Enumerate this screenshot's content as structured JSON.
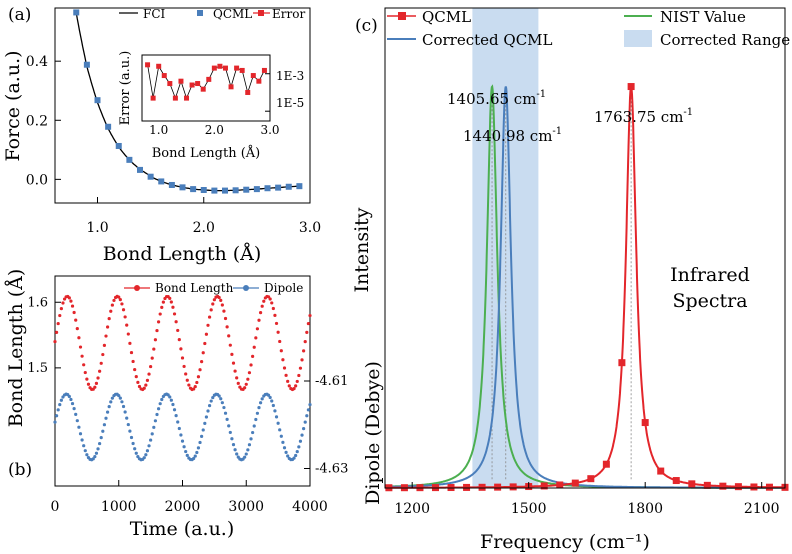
{
  "panels": {
    "a": {
      "label": "(a)",
      "xlabel": "Bond Length (Å)",
      "ylabel": "Force (a.u.)",
      "x_ticks": [
        "1.0",
        "2.0",
        "3.0"
      ],
      "y_ticks": [
        "0.0",
        "0.2",
        "0.4"
      ],
      "legend": [
        "FCI",
        "QCML",
        "Error"
      ],
      "inset": {
        "xlabel": "Bond Length (Å)",
        "ylabel": "Error (a.u.)",
        "x_ticks": [
          "1.0",
          "2.0",
          "3.0"
        ],
        "y_ticks": [
          "1E-3",
          "1E-5"
        ]
      }
    },
    "b": {
      "label": "(b)",
      "xlabel": "Time (a.u.)",
      "ylabel_left": "Bond Length (Å)",
      "ylabel_right": "Dipole (Debye)",
      "x_ticks": [
        "0",
        "1000",
        "2000",
        "3000",
        "4000"
      ],
      "y_ticks_left": [
        "1.6",
        "1.5"
      ],
      "y_ticks_right": [
        "-4.61",
        "-4.63"
      ],
      "legend": [
        "Bond Length",
        "Dipole"
      ]
    },
    "c": {
      "label": "(c)",
      "xlabel": "Frequency (cm⁻¹)",
      "ylabel": "Intensity",
      "x_ticks": [
        "1200",
        "1500",
        "1800",
        "2100"
      ],
      "legend": [
        "QCML",
        "NIST Value",
        "Corrected QCML",
        "Corrected Range"
      ],
      "peaks": [
        {
          "base": "1405.65 cm",
          "sup": "-1"
        },
        {
          "base": "1440.98 cm",
          "sup": "-1"
        },
        {
          "base": "1763.75 cm",
          "sup": "-1"
        }
      ],
      "title_lines": [
        "Infrared",
        "Spectra"
      ]
    }
  },
  "colors": {
    "black": "#000000",
    "qcml_blue": "#4a7ebb",
    "error_red": "#e3262b",
    "nist_green": "#4caf50",
    "range_fill": "#c9dcf0"
  },
  "chart_data": [
    {
      "type": "line",
      "title": "(a)",
      "xlabel": "Bond Length (Å)",
      "ylabel": "Force (a.u.)",
      "xlim": [
        0.6,
        3.0
      ],
      "ylim": [
        -0.08,
        0.58
      ],
      "series": [
        {
          "name": "FCI",
          "style": "line",
          "x": [
            0.8,
            0.9,
            1.0,
            1.1,
            1.2,
            1.3,
            1.4,
            1.5,
            1.6,
            1.7,
            1.8,
            1.9,
            2.0,
            2.1,
            2.2,
            2.3,
            2.4,
            2.5,
            2.6,
            2.7,
            2.8,
            2.9
          ],
          "y": [
            0.565,
            0.388,
            0.268,
            0.178,
            0.113,
            0.066,
            0.032,
            0.009,
            -0.007,
            -0.019,
            -0.027,
            -0.033,
            -0.036,
            -0.038,
            -0.038,
            -0.037,
            -0.035,
            -0.033,
            -0.03,
            -0.028,
            -0.025,
            -0.023
          ]
        },
        {
          "name": "QCML",
          "style": "square",
          "x": [
            0.8,
            0.9,
            1.0,
            1.1,
            1.2,
            1.3,
            1.4,
            1.5,
            1.6,
            1.7,
            1.8,
            1.9,
            2.0,
            2.1,
            2.2,
            2.3,
            2.4,
            2.5,
            2.6,
            2.7,
            2.8,
            2.9
          ],
          "y": [
            0.565,
            0.388,
            0.268,
            0.178,
            0.113,
            0.066,
            0.032,
            0.009,
            -0.007,
            -0.019,
            -0.027,
            -0.033,
            -0.036,
            -0.038,
            -0.038,
            -0.037,
            -0.035,
            -0.033,
            -0.03,
            -0.028,
            -0.025,
            -0.023
          ]
        }
      ]
    },
    {
      "type": "line",
      "title": "(a) inset",
      "xlabel": "Bond Length (Å)",
      "ylabel": "Error (a.u.)",
      "yscale": "log",
      "xlim": [
        0.7,
        3.0
      ],
      "ylim": [
        3e-06,
        0.01
      ],
      "series": [
        {
          "name": "Error",
          "x": [
            0.8,
            0.9,
            1.0,
            1.1,
            1.2,
            1.3,
            1.4,
            1.5,
            1.6,
            1.7,
            1.8,
            1.9,
            2.0,
            2.1,
            2.2,
            2.3,
            2.4,
            2.5,
            2.6,
            2.7,
            2.8,
            2.9
          ],
          "y": [
            0.003,
            5e-05,
            0.0025,
            0.0008,
            0.0003,
            5e-05,
            0.0004,
            5e-05,
            0.00025,
            0.0003,
            0.00015,
            0.0005,
            0.002,
            0.0025,
            0.002,
            0.0002,
            0.002,
            0.0015,
            0.0001,
            0.0008,
            0.0004,
            0.0015
          ]
        }
      ]
    },
    {
      "type": "line",
      "title": "(b)",
      "xlabel": "Time (a.u.)",
      "ylabel": "Bond Length (Å)",
      "y2label": "Dipole (Debye)",
      "xlim": [
        0,
        4000
      ],
      "series": [
        {
          "name": "Bond Length",
          "axis": "left",
          "period": 785,
          "phase_start_time": 0,
          "x_range": [
            0,
            4000
          ],
          "y_center": 1.538,
          "y_amplitude": 0.071,
          "start_value": 1.54
        },
        {
          "name": "Dipole",
          "axis": "right",
          "period": 785,
          "x_range": [
            0,
            4000
          ],
          "y_center": -4.6205,
          "y_amplitude": 0.0075
        }
      ],
      "ylim_left": [
        1.32,
        1.64
      ],
      "ylim_right": [
        -4.634,
        -4.586
      ]
    },
    {
      "type": "line",
      "title": "(c) Infrared Spectra",
      "xlabel": "Frequency (cm⁻¹)",
      "ylabel": "Intensity",
      "xlim": [
        1130,
        2160
      ],
      "ylim": [
        0,
        1.1
      ],
      "shaded_range": [
        1355,
        1525
      ],
      "series": [
        {
          "name": "QCML",
          "peak": 1763.75,
          "width": 16,
          "height": 1.0,
          "markers_x": [
            1140,
            1180,
            1220,
            1260,
            1300,
            1340,
            1380,
            1420,
            1460,
            1500,
            1540,
            1580,
            1620,
            1660,
            1700,
            1740,
            1763.75,
            1800,
            1840,
            1880,
            1920,
            1960,
            2000,
            2040,
            2080,
            2120,
            2160
          ]
        },
        {
          "name": "NIST Value",
          "peak": 1405.65,
          "width": 16,
          "height": 1.0
        },
        {
          "name": "Corrected QCML",
          "peak": 1440.98,
          "width": 16,
          "height": 1.0
        }
      ]
    }
  ]
}
